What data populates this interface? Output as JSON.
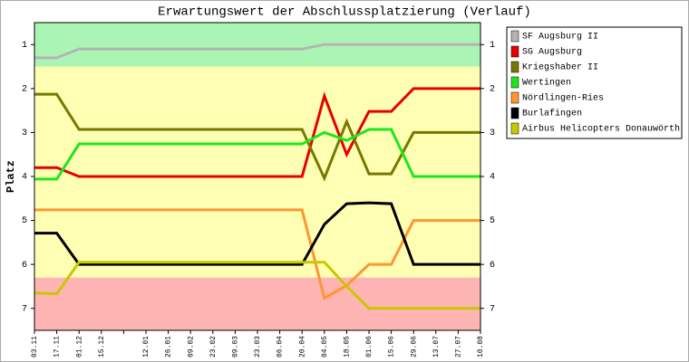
{
  "chart_data": {
    "type": "line",
    "title": "Erwartungswert der Abschlussplatzierung (Verlauf)",
    "y_label": "Platz",
    "categories": [
      "03.11",
      "17.11",
      "01.12",
      "15.12",
      null,
      "12.01",
      "26.01",
      "09.02",
      "23.02",
      "09.03",
      "23.03",
      "06.04",
      "20.04",
      "04.05",
      "18.05",
      "01.06",
      "15.06",
      "29.06",
      "13.07",
      "27.07",
      "10.08"
    ],
    "ylim": [
      7.5,
      0.5
    ],
    "yticks": [
      1,
      2,
      3,
      4,
      5,
      6,
      7
    ],
    "bands": [
      {
        "from": 0.5,
        "to": 1.5,
        "color": "#aaf5b4"
      },
      {
        "from": 1.5,
        "to": 6.3,
        "color": "#ffffb4"
      },
      {
        "from": 6.3,
        "to": 7.5,
        "color": "#ffb4b4"
      }
    ],
    "legend": "outside-right",
    "series": [
      {
        "name": "SF Augsburg II",
        "color": "#b4b4b4",
        "values": [
          1.3,
          1.3,
          1.1,
          1.1,
          1.1,
          1.1,
          1.1,
          1.1,
          1.1,
          1.1,
          1.1,
          1.1,
          1.1,
          1.0,
          1.0,
          1.0,
          1.0,
          1.0,
          1.0,
          1.0,
          1.0
        ]
      },
      {
        "name": "SG Augsburg",
        "color": "#e60000",
        "values": [
          3.8,
          3.8,
          4.0,
          4.0,
          4.0,
          4.0,
          4.0,
          4.0,
          4.0,
          4.0,
          4.0,
          4.0,
          4.0,
          2.17,
          3.5,
          2.52,
          2.52,
          2.0,
          2.0,
          2.0,
          2.0
        ]
      },
      {
        "name": "Kriegshaber II",
        "color": "#787800",
        "values": [
          2.13,
          2.13,
          2.93,
          2.93,
          2.93,
          2.93,
          2.93,
          2.93,
          2.93,
          2.93,
          2.93,
          2.93,
          2.93,
          4.04,
          2.75,
          3.94,
          3.94,
          3.0,
          3.0,
          3.0,
          3.0
        ]
      },
      {
        "name": "Wertingen",
        "color": "#1ee61e",
        "values": [
          4.06,
          4.06,
          3.26,
          3.26,
          3.26,
          3.26,
          3.26,
          3.26,
          3.26,
          3.26,
          3.26,
          3.26,
          3.26,
          3.0,
          3.18,
          2.93,
          2.93,
          4.0,
          4.0,
          4.0,
          4.0
        ]
      },
      {
        "name": "Nördlingen-Ries",
        "color": "#ff9632",
        "values": [
          4.76,
          4.76,
          4.76,
          4.76,
          4.76,
          4.76,
          4.76,
          4.76,
          4.76,
          4.76,
          4.76,
          4.76,
          4.76,
          6.77,
          6.48,
          6.0,
          6.0,
          5.0,
          5.0,
          5.0,
          5.0
        ]
      },
      {
        "name": "Burlafingen",
        "color": "#000000",
        "values": [
          5.29,
          5.29,
          6.0,
          6.0,
          6.0,
          6.0,
          6.0,
          6.0,
          6.0,
          6.0,
          6.0,
          6.0,
          6.0,
          5.09,
          4.62,
          4.6,
          4.62,
          6.0,
          6.0,
          6.0,
          6.0
        ]
      },
      {
        "name": "Airbus Helicopters Donauwörth",
        "color": "#c8c800",
        "values": [
          6.65,
          6.67,
          5.95,
          5.95,
          5.95,
          5.95,
          5.95,
          5.95,
          5.95,
          5.95,
          5.95,
          5.95,
          5.95,
          5.95,
          6.5,
          7.0,
          7.0,
          7.0,
          7.0,
          7.0,
          7.0
        ]
      }
    ]
  }
}
